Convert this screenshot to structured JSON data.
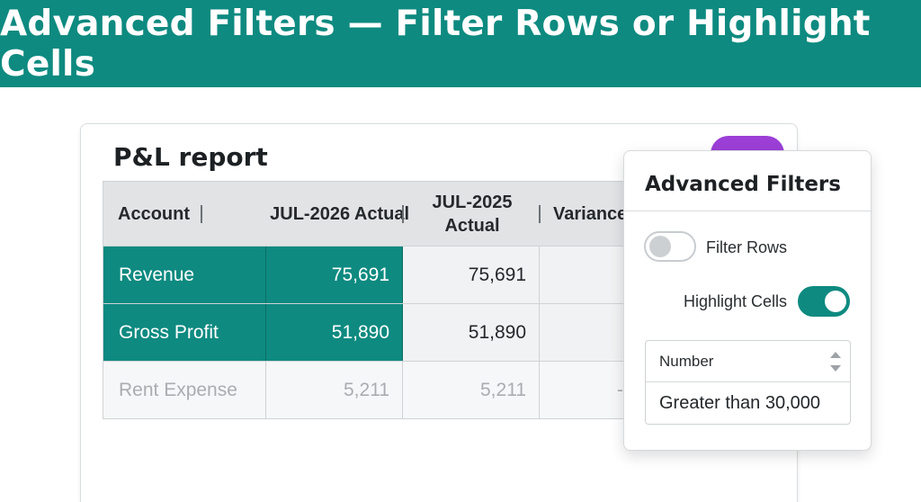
{
  "banner": {
    "title": "Advanced Filters — Filter Rows or Highlight Cells"
  },
  "colors": {
    "accent": "#0e8a80",
    "purple_action": "#9b3fd6",
    "header_gray": "#e1e3e5"
  },
  "report": {
    "title": "P&L report",
    "columns": [
      "Account",
      "JUL-2026 Actual",
      "JUL-2025 Actual",
      "Variance"
    ],
    "rows": [
      {
        "account": "Revenue",
        "jul2026": "75,691",
        "jul2025": "75,691",
        "variance": "",
        "highlighted": true
      },
      {
        "account": "Gross Profit",
        "jul2026": "51,890",
        "jul2025": "51,890",
        "variance": "",
        "highlighted": true
      },
      {
        "account": "Rent Expense",
        "jul2026": "5,211",
        "jul2025": "5,211",
        "variance": "-",
        "highlighted": false
      }
    ]
  },
  "filters": {
    "title": "Advanced Filters",
    "filter_rows": {
      "label": "Filter Rows",
      "on": false
    },
    "highlight_cells": {
      "label": "Highlight Cells",
      "on": true
    },
    "type_select": {
      "value": "Number"
    },
    "condition": "Greater than 30,000"
  }
}
